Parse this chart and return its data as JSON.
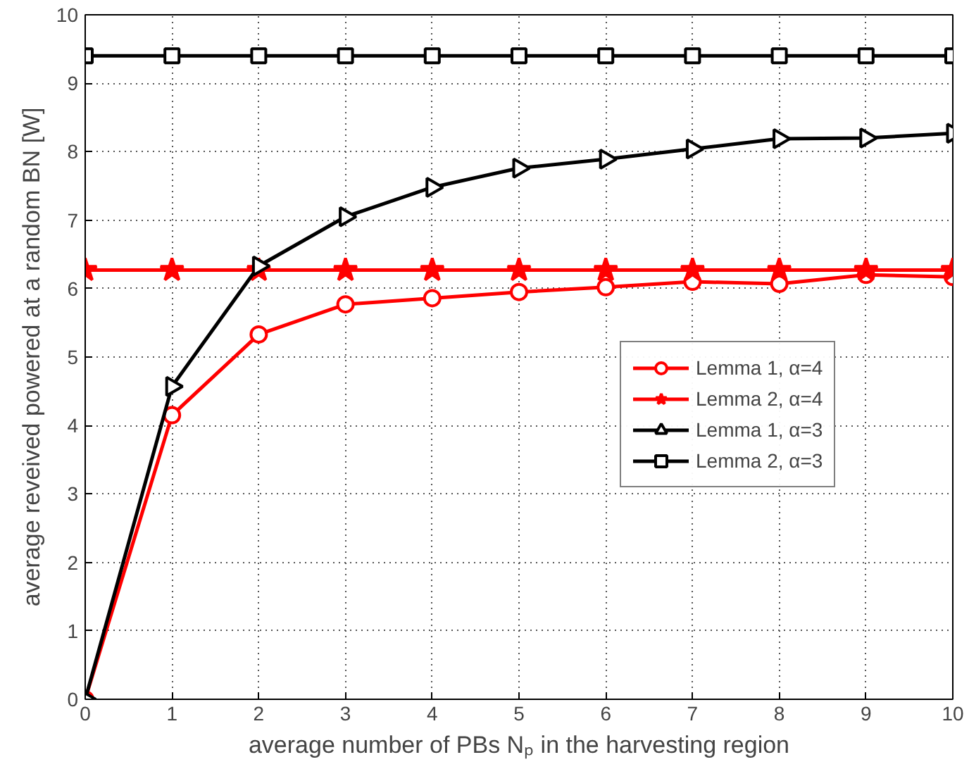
{
  "chart_data": {
    "type": "line",
    "xlabel": "average number of PBs Nₚ in the harvesting region",
    "ylabel": "average reveived powered at a random BN [W]",
    "x": [
      0,
      1,
      2,
      3,
      4,
      5,
      6,
      7,
      8,
      9,
      10
    ],
    "xlim": [
      0,
      10
    ],
    "xticks": [
      0,
      1,
      2,
      3,
      4,
      5,
      6,
      7,
      8,
      9,
      10
    ],
    "ylim": [
      0,
      10
    ],
    "yticks": [
      0,
      1,
      2,
      3,
      4,
      5,
      6,
      7,
      8,
      9,
      10
    ],
    "grid": true,
    "legend": "right",
    "line_style": "solid",
    "series": [
      {
        "name": "Lemma 1, α=4",
        "color": "#ff0000",
        "marker": "circle",
        "values": [
          0,
          4.15,
          5.33,
          5.77,
          5.86,
          5.95,
          6.02,
          6.1,
          6.07,
          6.2,
          6.17
        ]
      },
      {
        "name": "Lemma 2, α=4",
        "color": "#ff0000",
        "marker": "star",
        "values": [
          6.27,
          6.27,
          6.27,
          6.27,
          6.27,
          6.27,
          6.27,
          6.27,
          6.27,
          6.27,
          6.27
        ]
      },
      {
        "name": "Lemma 1, α=3",
        "color": "#000000",
        "marker": "triangle",
        "values": [
          0,
          4.57,
          6.33,
          7.05,
          7.48,
          7.76,
          7.89,
          8.04,
          8.19,
          8.2,
          8.27
        ]
      },
      {
        "name": "Lemma 2, α=3",
        "color": "#000000",
        "marker": "square",
        "values": [
          9.4,
          9.4,
          9.4,
          9.4,
          9.4,
          9.4,
          9.4,
          9.4,
          9.4,
          9.4,
          9.4
        ]
      }
    ]
  }
}
